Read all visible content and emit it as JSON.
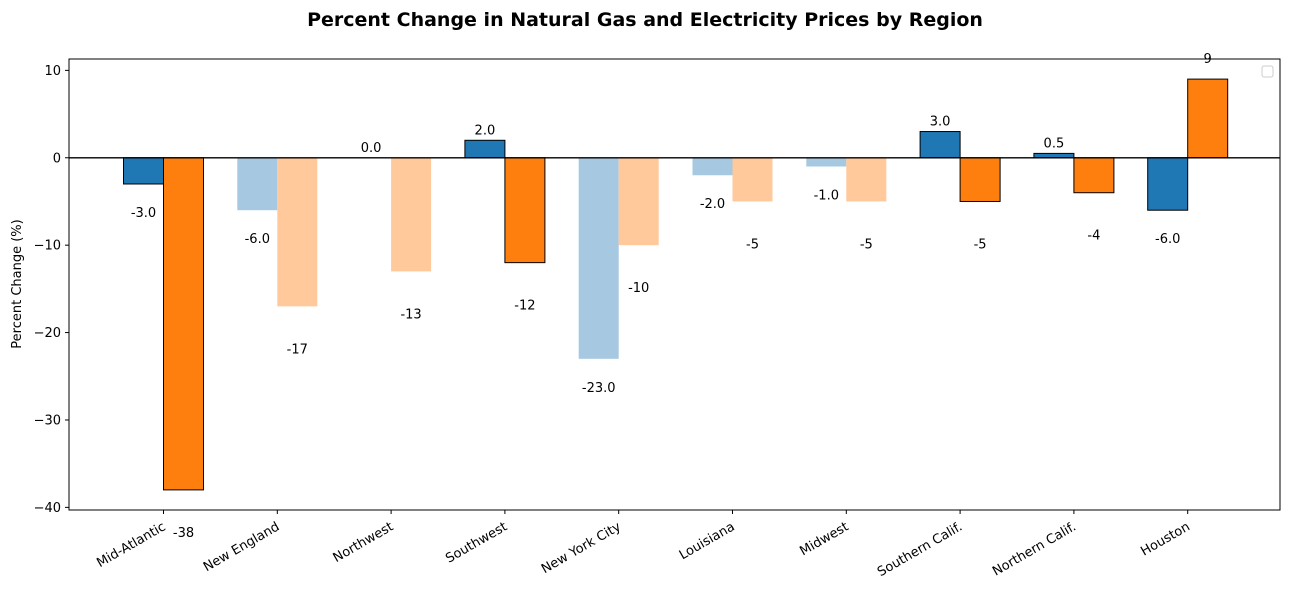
{
  "chart_data": {
    "type": "bar",
    "title": "Percent Change in Natural Gas and Electricity Prices by Region",
    "xlabel": "",
    "ylabel": "Percent Change (%)",
    "ylim": [
      -40.3,
      11.3
    ],
    "yticks": [
      10,
      0,
      -10,
      -20,
      -30,
      -40
    ],
    "ytick_labels": [
      "10",
      "0",
      "−10",
      "−20",
      "−30",
      "−40"
    ],
    "categories": [
      "Mid-Atlantic",
      "New England",
      "Northwest",
      "Southwest",
      "New York City",
      "Louisiana",
      "Midwest",
      "Southern Calif.",
      "Northern Calif.",
      "Houston"
    ],
    "series": [
      {
        "values": [
          -3.0,
          -6.0,
          0.0,
          2.0,
          -23.0,
          -2.0,
          -1.0,
          3.0,
          0.5,
          -6.0
        ],
        "labels": [
          "-3.0",
          "-6.0",
          "0.0",
          "2.0",
          "-23.0",
          "-2.0",
          "-1.0",
          "3.0",
          "0.5",
          "-6.0"
        ],
        "faded": [
          false,
          true,
          true,
          false,
          true,
          true,
          true,
          false,
          false,
          false
        ]
      },
      {
        "values": [
          -38,
          -17,
          -13,
          -12,
          -10,
          -5,
          -5,
          -5,
          -4,
          9
        ],
        "labels": [
          "-38",
          "-17",
          "-13",
          "-12",
          "-10",
          "-5",
          "-5",
          "-5",
          "-4",
          "9"
        ],
        "faded": [
          false,
          true,
          true,
          false,
          true,
          true,
          true,
          false,
          false,
          false
        ]
      }
    ],
    "grid": false,
    "legend": "top-right",
    "zero_line": true,
    "colors": {
      "series1": "#1f77b4",
      "series1_faded": "#a6c8e0",
      "series2": "#ff7f0e",
      "series2_faded": "#ffc99b",
      "edge": "#000000"
    }
  }
}
